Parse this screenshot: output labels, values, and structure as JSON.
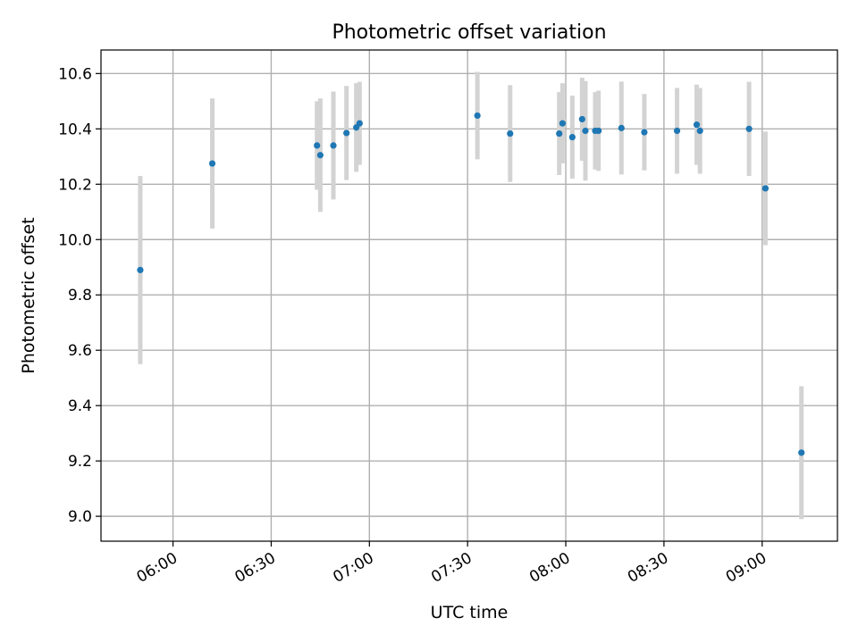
{
  "chart_data": {
    "type": "scatter",
    "title": "Photometric offset variation",
    "xlabel": "UTC time",
    "ylabel": "Photometric offset",
    "x_unit": "UTC time (HH:MM)",
    "xlim": [
      "05:38",
      "09:23"
    ],
    "ylim": [
      8.91,
      10.685
    ],
    "grid": true,
    "xticks": [
      "06:00",
      "06:30",
      "07:00",
      "07:30",
      "08:00",
      "08:30",
      "09:00"
    ],
    "yticks": [
      "9.0",
      "9.2",
      "9.4",
      "9.6",
      "9.8",
      "10.0",
      "10.2",
      "10.4",
      "10.6"
    ],
    "colors": {
      "marker": "#1f77b4",
      "errorbar": "#d3d3d3",
      "grid": "#b0b0b0"
    },
    "points": [
      {
        "x": "05:50",
        "y": 9.89,
        "err": 0.34
      },
      {
        "x": "06:12",
        "y": 10.275,
        "err": 0.235
      },
      {
        "x": "06:44",
        "y": 10.34,
        "err": 0.16
      },
      {
        "x": "06:45",
        "y": 10.305,
        "err": 0.205
      },
      {
        "x": "06:49",
        "y": 10.34,
        "err": 0.195
      },
      {
        "x": "06:53",
        "y": 10.385,
        "err": 0.17
      },
      {
        "x": "06:56",
        "y": 10.405,
        "err": 0.16
      },
      {
        "x": "06:57",
        "y": 10.42,
        "err": 0.15
      },
      {
        "x": "07:33",
        "y": 10.448,
        "err": 0.158
      },
      {
        "x": "07:43",
        "y": 10.383,
        "err": 0.175
      },
      {
        "x": "07:58",
        "y": 10.383,
        "err": 0.15
      },
      {
        "x": "07:59",
        "y": 10.42,
        "err": 0.145
      },
      {
        "x": "08:02",
        "y": 10.37,
        "err": 0.15
      },
      {
        "x": "08:05",
        "y": 10.435,
        "err": 0.15
      },
      {
        "x": "08:06",
        "y": 10.393,
        "err": 0.18
      },
      {
        "x": "08:09",
        "y": 10.393,
        "err": 0.14
      },
      {
        "x": "08:10",
        "y": 10.393,
        "err": 0.145
      },
      {
        "x": "08:17",
        "y": 10.403,
        "err": 0.168
      },
      {
        "x": "08:24",
        "y": 10.388,
        "err": 0.138
      },
      {
        "x": "08:34",
        "y": 10.393,
        "err": 0.155
      },
      {
        "x": "08:40",
        "y": 10.415,
        "err": 0.145
      },
      {
        "x": "08:41",
        "y": 10.393,
        "err": 0.155
      },
      {
        "x": "08:56",
        "y": 10.4,
        "err": 0.17
      },
      {
        "x": "09:01",
        "y": 10.185,
        "err": 0.205
      },
      {
        "x": "09:12",
        "y": 9.23,
        "err": 0.24
      }
    ]
  }
}
